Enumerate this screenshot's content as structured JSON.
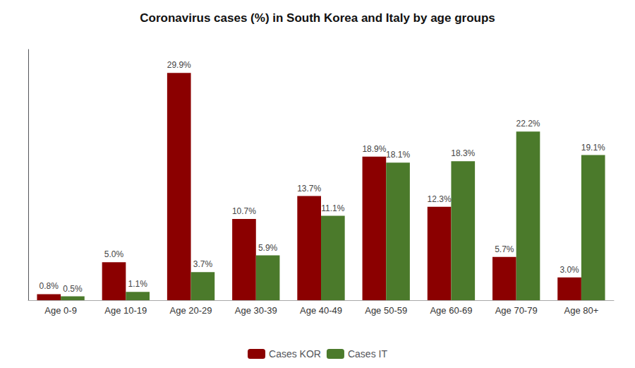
{
  "chart_data": {
    "type": "bar",
    "title": "Coronavirus cases (%) in South Korea and Italy by age groups",
    "categories": [
      "Age 0-9",
      "Age 10-19",
      "Age 20-29",
      "Age 30-39",
      "Age 40-49",
      "Age 50-59",
      "Age 60-69",
      "Age 70-79",
      "Age 80+"
    ],
    "series": [
      {
        "name": "Cases KOR",
        "color": "#8B0000",
        "values": [
          0.8,
          5.0,
          29.9,
          10.7,
          13.7,
          18.9,
          12.3,
          5.7,
          3.0
        ],
        "value_labels": [
          "0.8%",
          "5.0%",
          "29.9%",
          "10.7%",
          "13.7%",
          "18.9%",
          "12.3%",
          "5.7%",
          "3.0%"
        ]
      },
      {
        "name": "Cases IT",
        "color": "#4B7A2B",
        "values": [
          0.5,
          1.1,
          3.7,
          5.9,
          11.1,
          18.1,
          18.3,
          22.2,
          19.1
        ],
        "value_labels": [
          "0.5%",
          "1.1%",
          "3.7%",
          "5.9%",
          "11.1%",
          "18.1%",
          "18.3%",
          "22.2%",
          "19.1%"
        ]
      }
    ],
    "ylim": [
      0,
      33
    ],
    "grid": false,
    "legend": "bottom",
    "data_labels": true,
    "tick_labels": "x"
  }
}
